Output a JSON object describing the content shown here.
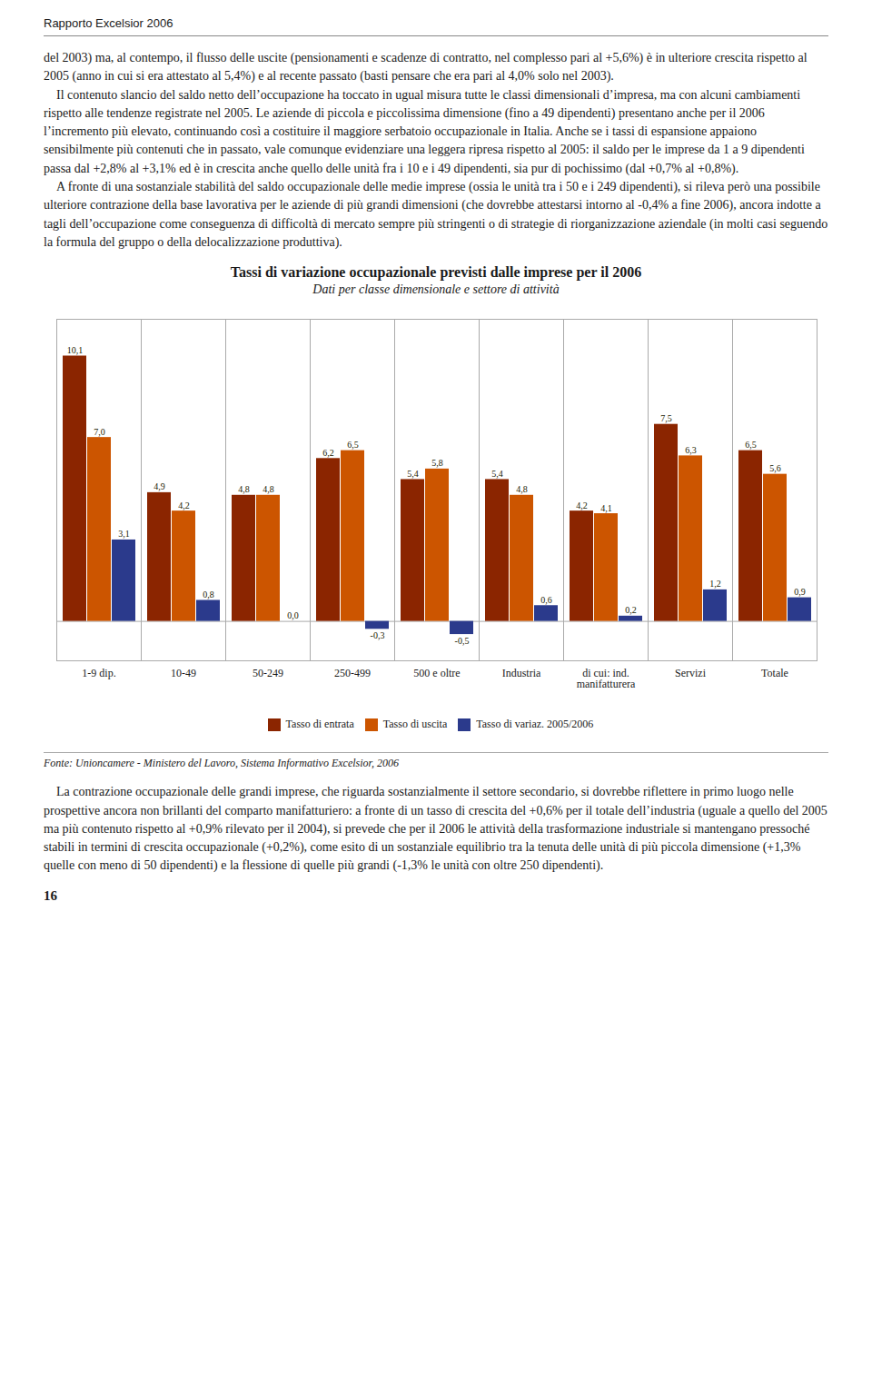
{
  "chart_data": {
    "type": "bar",
    "title": "Tassi di variazione occupazionale previsti dalle imprese per il 2006",
    "subtitle": "Dati per classe dimensionale e settore di attività",
    "categories": [
      "1-9 dip.",
      "10-49",
      "50-249",
      "250-499",
      "500 e oltre",
      "Industria",
      "di cui: ind.\nmanifatturera",
      "Servizi",
      "Totale"
    ],
    "series": [
      {
        "name": "Tasso di entrata",
        "color": "#8B2500",
        "values": [
          10.1,
          4.9,
          4.8,
          6.2,
          5.4,
          5.4,
          4.2,
          7.5,
          6.5
        ],
        "value_labels": [
          "10,1",
          "4,9",
          "4,8",
          "6,2",
          "5,4",
          "5,4",
          "4,2",
          "7,5",
          "6,5"
        ]
      },
      {
        "name": "Tasso di uscita",
        "color": "#CC5500",
        "values": [
          7.0,
          4.2,
          4.8,
          6.5,
          5.8,
          4.8,
          4.1,
          6.3,
          5.6
        ],
        "value_labels": [
          "7,0",
          "4,2",
          "4,8",
          "6,5",
          "5,8",
          "4,8",
          "4,1",
          "6,3",
          "5,6"
        ]
      },
      {
        "name": "Tasso di variaz. 2005/2006",
        "color": "#2B3A8C",
        "values": [
          3.1,
          0.8,
          0.0,
          -0.3,
          -0.5,
          0.6,
          0.2,
          1.2,
          0.9
        ],
        "value_labels": [
          "3,1",
          "0,8",
          "0,0",
          "-0,3",
          "-0,5",
          "0,6",
          "0,2",
          "1,2",
          "0,9"
        ]
      }
    ],
    "ylim": [
      -1.5,
      11.5
    ],
    "tick_labels": "x",
    "data_labels": true,
    "legend": "bottom",
    "grid": false
  },
  "page": {
    "header": "Rapporto Excelsior 2006",
    "text_above": "del 2003) ma, al contempo, il flusso delle uscite (pensionamenti e scadenze di contratto, nel complesso pari al +5,6%) è in ulteriore crescita rispetto al 2005 (anno in cui si era attestato al 5,4%) e al recente passato (basti pensare che era pari al 4,0% solo nel 2003).\n    Il contenuto slancio del saldo netto dell’occupazione ha toccato in ugual misura tutte le classi dimensionali d’impresa, ma con alcuni cambiamenti rispetto alle tendenze registrate nel 2005. Le aziende di piccola e piccolissima dimensione (fino a 49 dipendenti) presentano anche per il 2006 l’incremento più elevato, continuando così a costituire il maggiore serbatoio occupazionale in Italia. Anche se i tassi di espansione appaiono sensibilmente più contenuti che in passato, vale comunque evidenziare una leggera ripresa rispetto al 2005: il saldo per le imprese da 1 a 9 dipendenti passa dal +2,8% al +3,1% ed è in crescita anche quello delle unità fra i 10 e i 49 dipendenti, sia pur di pochissimo (dal +0,7% al +0,8%).\n    A fronte di una sostanziale stabilità del saldo occupazionale delle medie imprese (ossia le unità tra i 50 e i 249 dipendenti), si rileva però una possibile ulteriore contrazione della base lavorativa per le aziende di più grandi dimensioni (che dovrebbe attestarsi intorno al -0,4% a fine 2006), ancora indotte a tagli dell’occupazione come conseguenza di difficoltà di mercato sempre più stringenti o di strategie di riorganizzazione aziendale (in molti casi seguendo la formula del gruppo o della delocalizzazione produttiva).",
    "source": "Fonte: Unioncamere - Ministero del Lavoro, Sistema Informativo Excelsior, 2006",
    "text_below": "    La contrazione occupazionale delle grandi imprese, che riguarda sostanzialmente il settore secondario, si dovrebbe riflettere in primo luogo nelle prospettive ancora non brillanti del comparto manifatturiero: a fronte di un tasso di crescita del +0,6% per il totale dell’industria (uguale a quello del 2005 ma più contenuto rispetto al +0,9% rilevato per il 2004), si prevede che per il 2006 le attività della trasformazione industriale si mantengano pressoché stabili in termini di crescita occupazionale (+0,2%), come esito di un sostanziale equilibrio tra la tenuta delle unità di più piccola dimensione (+1,3% quelle con meno di 50 dipendenti) e la flessione di quelle più grandi (-1,3% le unità con oltre 250 dipendenti).",
    "page_number": "16"
  }
}
